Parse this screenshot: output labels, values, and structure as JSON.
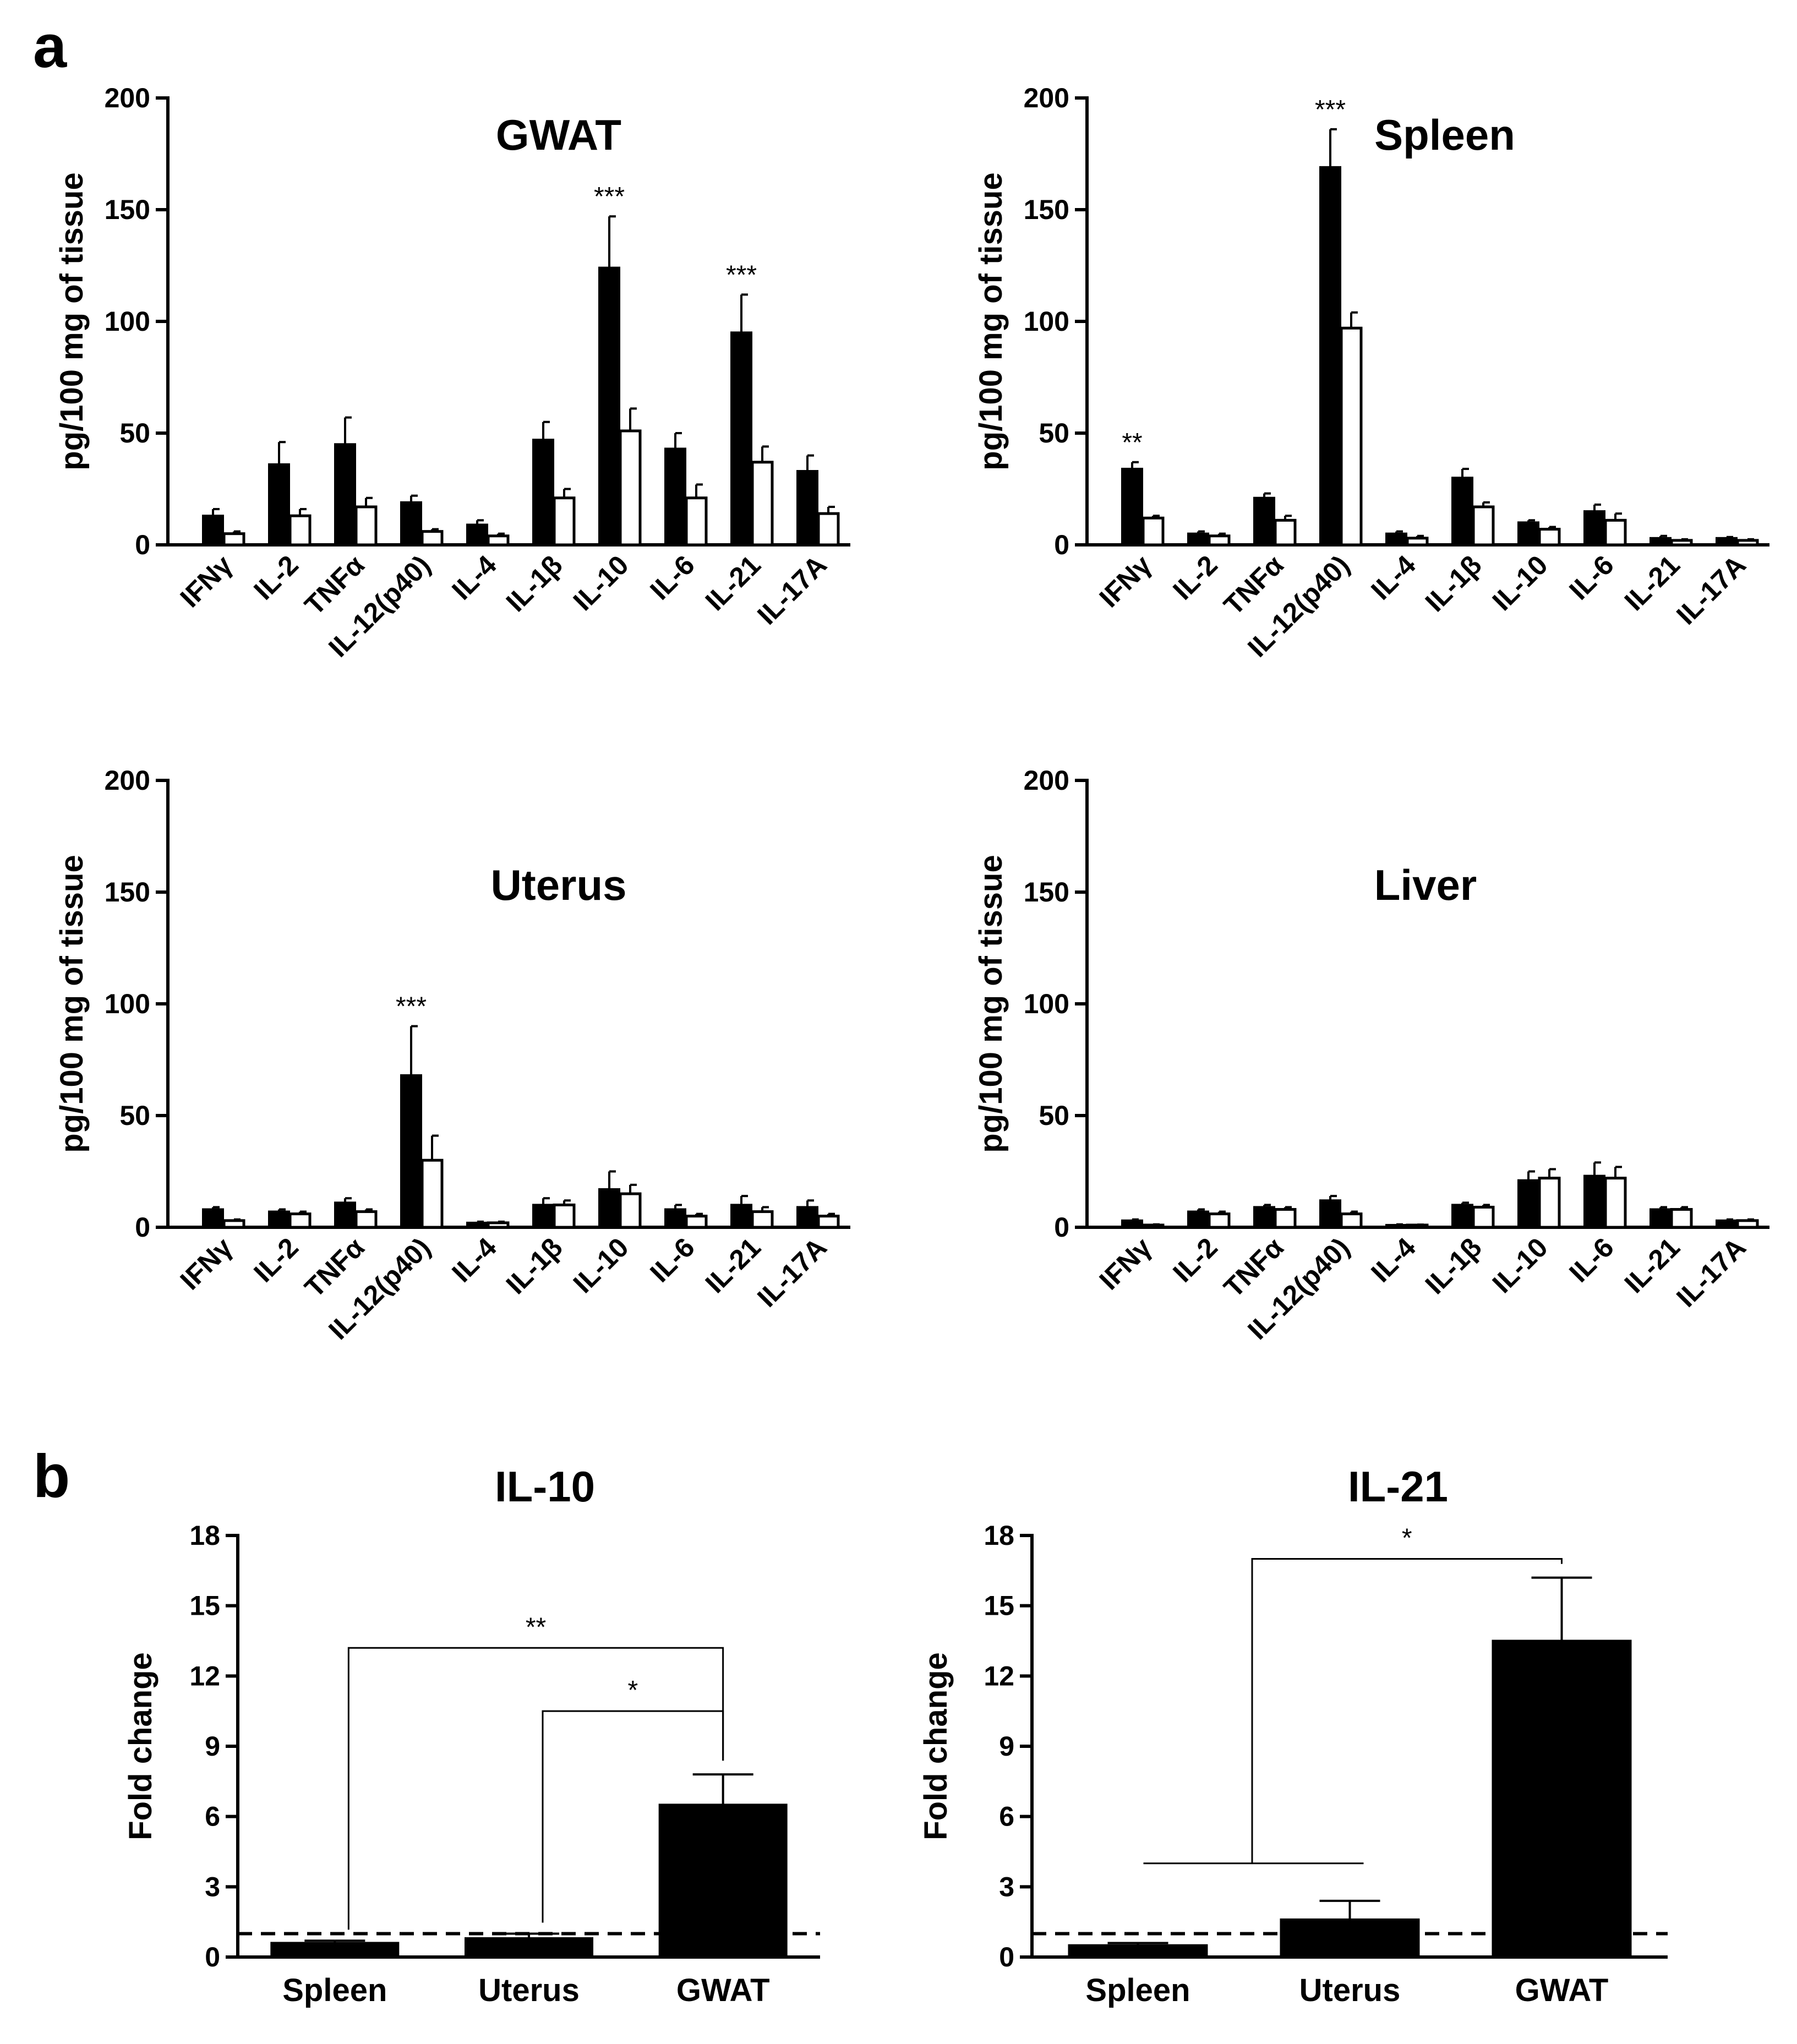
{
  "panel_labels": [
    "a",
    "b"
  ],
  "chart_data": [
    {
      "type": "bar",
      "title": "GWAT",
      "ylabel": "pg/100 mg of tissue",
      "ylim": [
        0,
        200
      ],
      "yticks": [
        0,
        50,
        100,
        150,
        200
      ],
      "categories": [
        "IFNγ",
        "IL-2",
        "TNFα",
        "IL-12(p40)",
        "IL-4",
        "IL-1β",
        "IL-10",
        "IL-6",
        "IL-21",
        "IL-17A"
      ],
      "series": [
        {
          "color": "#000000",
          "values": [
            13,
            36,
            45,
            19,
            9,
            47,
            124,
            43,
            95,
            33
          ],
          "errors": [
            3,
            10,
            12,
            3,
            2,
            8,
            23,
            7,
            17,
            7
          ]
        },
        {
          "color": "#ffffff",
          "values": [
            5,
            13,
            17,
            6,
            4,
            21,
            51,
            21,
            37,
            14
          ],
          "errors": [
            1,
            3,
            4,
            1,
            1,
            4,
            10,
            6,
            7,
            3
          ]
        }
      ],
      "annotations": [
        {
          "category": "IL-10",
          "text": "***"
        },
        {
          "category": "IL-21",
          "text": "***"
        }
      ],
      "grid": false
    },
    {
      "type": "bar",
      "title": "Spleen",
      "ylabel": "pg/100 mg of tissue",
      "ylim": [
        0,
        200
      ],
      "yticks": [
        0,
        50,
        100,
        150,
        200
      ],
      "categories": [
        "IFNγ",
        "IL-2",
        "TNFα",
        "IL-12(p40)",
        "IL-4",
        "IL-1β",
        "IL-10",
        "IL-6",
        "IL-21",
        "IL-17A"
      ],
      "series": [
        {
          "color": "#000000",
          "values": [
            34,
            5,
            21,
            169,
            5,
            30,
            10,
            15,
            3,
            3
          ],
          "errors": [
            3,
            1,
            2,
            17,
            1,
            4,
            1,
            3,
            1,
            0.5
          ]
        },
        {
          "color": "#ffffff",
          "values": [
            12,
            4,
            11,
            97,
            3,
            17,
            7,
            11,
            2,
            2
          ],
          "errors": [
            1,
            1,
            2,
            7,
            1,
            2,
            1,
            3,
            0.5,
            0.5
          ]
        }
      ],
      "annotations": [
        {
          "category": "IFNγ",
          "text": "**"
        },
        {
          "category": "IL-12(p40)",
          "text": "***"
        }
      ],
      "grid": false
    },
    {
      "type": "bar",
      "title": "Uterus",
      "ylabel": "pg/100 mg of tissue",
      "ylim": [
        0,
        200
      ],
      "yticks": [
        0,
        50,
        100,
        150,
        200
      ],
      "categories": [
        "IFNγ",
        "IL-2",
        "TNFα",
        "IL-12(p40)",
        "IL-4",
        "IL-1β",
        "IL-10",
        "IL-6",
        "IL-21",
        "IL-17A"
      ],
      "series": [
        {
          "color": "#000000",
          "values": [
            8,
            7,
            11,
            68,
            2,
            10,
            17,
            8,
            10,
            9
          ],
          "errors": [
            1,
            1,
            2,
            22,
            0.5,
            3,
            8,
            2,
            4,
            3
          ]
        },
        {
          "color": "#ffffff",
          "values": [
            3,
            6,
            7,
            30,
            2,
            10,
            15,
            5,
            7,
            5
          ],
          "errors": [
            0.5,
            1,
            1,
            11,
            0.5,
            2,
            4,
            1,
            2,
            1
          ]
        }
      ],
      "annotations": [
        {
          "category": "IL-12(p40)",
          "text": "***"
        }
      ],
      "grid": false
    },
    {
      "type": "bar",
      "title": "Liver",
      "ylabel": "pg/100 mg of tissue",
      "ylim": [
        0,
        200
      ],
      "yticks": [
        0,
        50,
        100,
        150,
        200
      ],
      "categories": [
        "IFNγ",
        "IL-2",
        "TNFα",
        "IL-12(p40)",
        "IL-4",
        "IL-1β",
        "IL-10",
        "IL-6",
        "IL-21",
        "IL-17A"
      ],
      "series": [
        {
          "color": "#000000",
          "values": [
            3,
            7,
            9,
            12,
            1,
            10,
            21,
            23,
            8,
            3
          ],
          "errors": [
            0.5,
            1,
            1,
            2,
            0.3,
            1,
            4,
            6,
            1,
            0.5
          ]
        },
        {
          "color": "#ffffff",
          "values": [
            1,
            6,
            8,
            6,
            1,
            9,
            22,
            22,
            8,
            3
          ],
          "errors": [
            0.3,
            1,
            1,
            1,
            0.2,
            1,
            4,
            5,
            1,
            0.5
          ]
        }
      ],
      "annotations": [],
      "grid": false
    },
    {
      "type": "bar",
      "title": "IL-10",
      "ylabel": "Fold change",
      "ylim": [
        0,
        18
      ],
      "yticks": [
        0,
        3,
        6,
        9,
        12,
        15,
        18
      ],
      "categories": [
        "Spleen",
        "Uterus",
        "GWAT"
      ],
      "values": [
        0.6,
        0.8,
        6.5
      ],
      "errors": [
        0.1,
        0.2,
        1.3
      ],
      "reference_line": 1,
      "brackets": [
        {
          "from": "Spleen",
          "to": "GWAT",
          "y": 13.2,
          "text": "**"
        },
        {
          "from": "Uterus",
          "to": "GWAT",
          "y": 10.5,
          "text": "*"
        }
      ],
      "grid": false
    },
    {
      "type": "bar",
      "title": "IL-21",
      "ylabel": "Fold change",
      "ylim": [
        0,
        18
      ],
      "yticks": [
        0,
        3,
        6,
        9,
        12,
        15,
        18
      ],
      "categories": [
        "Spleen",
        "Uterus",
        "GWAT"
      ],
      "values": [
        0.5,
        1.6,
        13.5
      ],
      "errors": [
        0.1,
        0.8,
        2.7
      ],
      "reference_line": 1,
      "brackets": [
        {
          "from_group": [
            "Spleen",
            "Uterus"
          ],
          "to": "GWAT",
          "y": 17.0,
          "group_y": 4.0,
          "text": "*"
        }
      ],
      "grid": false
    }
  ]
}
